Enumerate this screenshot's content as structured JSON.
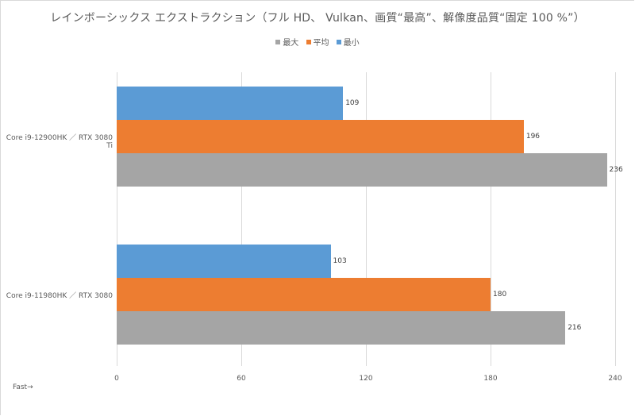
{
  "chart_data": {
    "type": "bar",
    "orientation": "horizontal",
    "title": "レインボーシックス エクストラクション（フル HD、 Vulkan、画質“最高”、解像度品質“固定 100 %”）",
    "xlabel": "",
    "ylabel": "",
    "xlim": [
      0,
      240
    ],
    "ticks": [
      "0",
      "60",
      "120",
      "180",
      "240"
    ],
    "tick_values": [
      0,
      60,
      120,
      180,
      240
    ],
    "grid": true,
    "legend_position": "top",
    "legend": [
      "最大",
      "平均",
      "最小"
    ],
    "categories": [
      "Core i9-12900HK ／ RTX 3080 Ti",
      "Core i9-11980HK ／ RTX 3080"
    ],
    "series": [
      {
        "name": "最大",
        "color": "#a5a5a5",
        "values": [
          236,
          216
        ]
      },
      {
        "name": "平均",
        "color": "#ed7d31",
        "values": [
          196,
          180
        ]
      },
      {
        "name": "最小",
        "color": "#5b9bd5",
        "values": [
          109,
          103
        ]
      }
    ],
    "annotation": "Fast→"
  }
}
